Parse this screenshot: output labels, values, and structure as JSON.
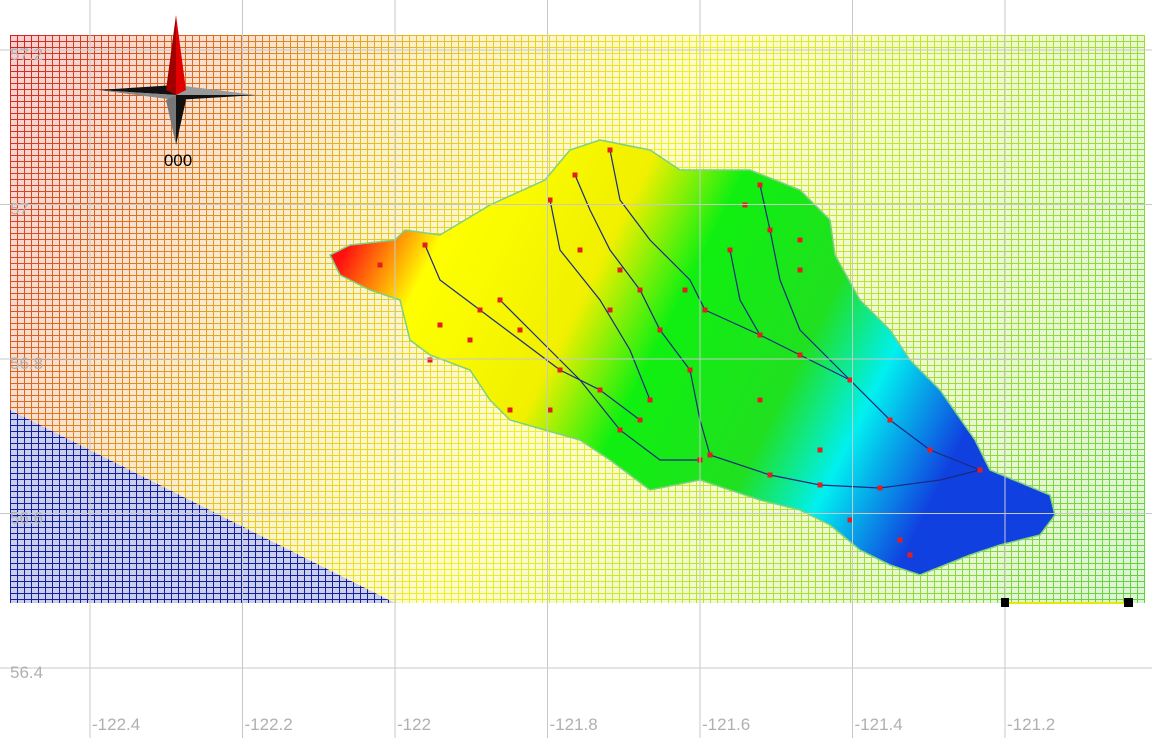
{
  "axes": {
    "x_labels": [
      "-122.4",
      "-122.2",
      "-122",
      "-121.8",
      "-121.6",
      "-121.4",
      "-121.2"
    ],
    "y_labels": [
      "57.2",
      "57",
      "56.8",
      "56.6",
      "56.4"
    ]
  },
  "compass": {
    "label": "000"
  }
}
